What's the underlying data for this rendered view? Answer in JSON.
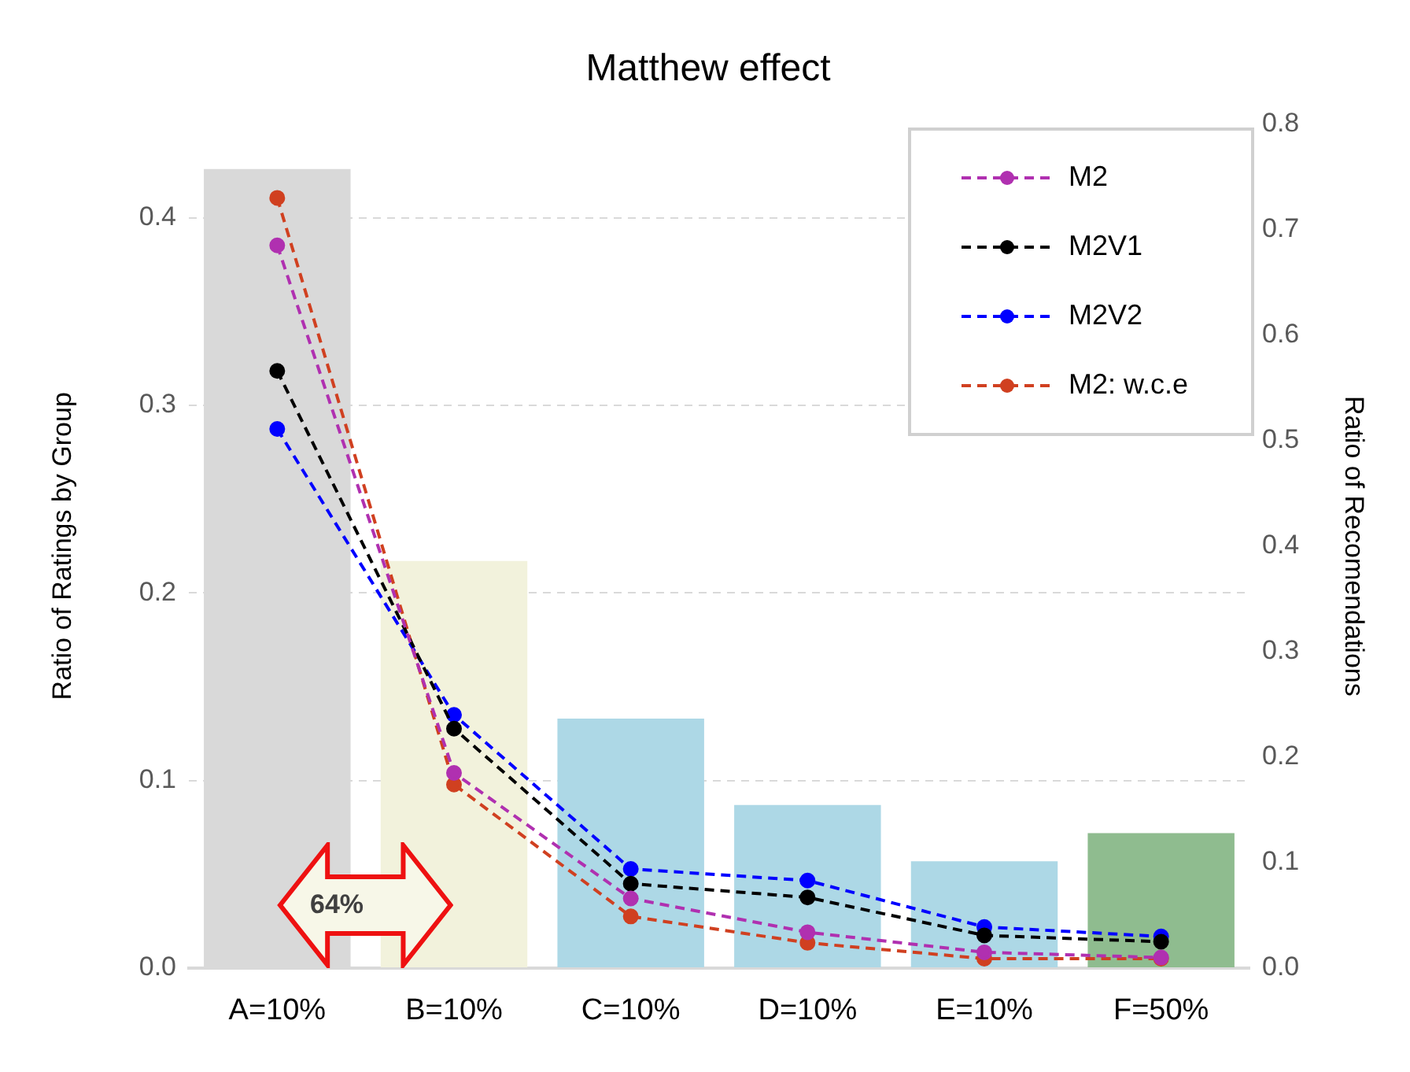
{
  "chart_data": {
    "type": "bar",
    "title": "Matthew effect",
    "ylabel": "Ratio of Ratings by Group",
    "y2label": "Ratio of Recomendations",
    "categories": [
      "A=10%",
      "B=10%",
      "C=10%",
      "D=10%",
      "E=10%",
      "F=50%"
    ],
    "series": [
      {
        "colors": [
          "#d9d9d9",
          "#f2f2dc",
          "#add8e6",
          "#add8e6",
          "#add8e6",
          "#8fbc8f"
        ],
        "values": [
          0.426,
          0.217,
          0.133,
          0.087,
          0.057,
          0.072
        ]
      },
      {
        "type": "line",
        "name": "M2",
        "color": "#b030b0",
        "axis": "y2",
        "values": [
          0.685,
          0.185,
          0.066,
          0.034,
          0.015,
          0.01
        ]
      },
      {
        "type": "line",
        "name": "M2V1",
        "color": "#000000",
        "axis": "y2",
        "values": [
          0.566,
          0.227,
          0.08,
          0.067,
          0.031,
          0.025
        ]
      },
      {
        "type": "line",
        "name": "M2V2",
        "color": "#0000ff",
        "axis": "y2",
        "values": [
          0.511,
          0.24,
          0.094,
          0.083,
          0.039,
          0.03
        ]
      },
      {
        "type": "line",
        "name": "M2: w.c.e",
        "color": "#d04020",
        "axis": "y2",
        "values": [
          0.73,
          0.174,
          0.049,
          0.024,
          0.009,
          0.009
        ]
      }
    ],
    "ylim": [
      0,
      0.45
    ],
    "yticks": [
      {
        "value": 0,
        "label": "0.0"
      },
      0.1,
      0.2,
      0.3,
      0.4
    ],
    "y2lim": [
      0,
      0.8
    ],
    "y2ticks": [
      {
        "value": 0,
        "label": "0.0"
      },
      0.1,
      0.2,
      0.3,
      0.4,
      0.5,
      0.6,
      0.7,
      0.8
    ],
    "grid": "y",
    "legend": "top right",
    "marker": "circle",
    "line_style": "dashed",
    "annotations": [
      "64%"
    ]
  }
}
